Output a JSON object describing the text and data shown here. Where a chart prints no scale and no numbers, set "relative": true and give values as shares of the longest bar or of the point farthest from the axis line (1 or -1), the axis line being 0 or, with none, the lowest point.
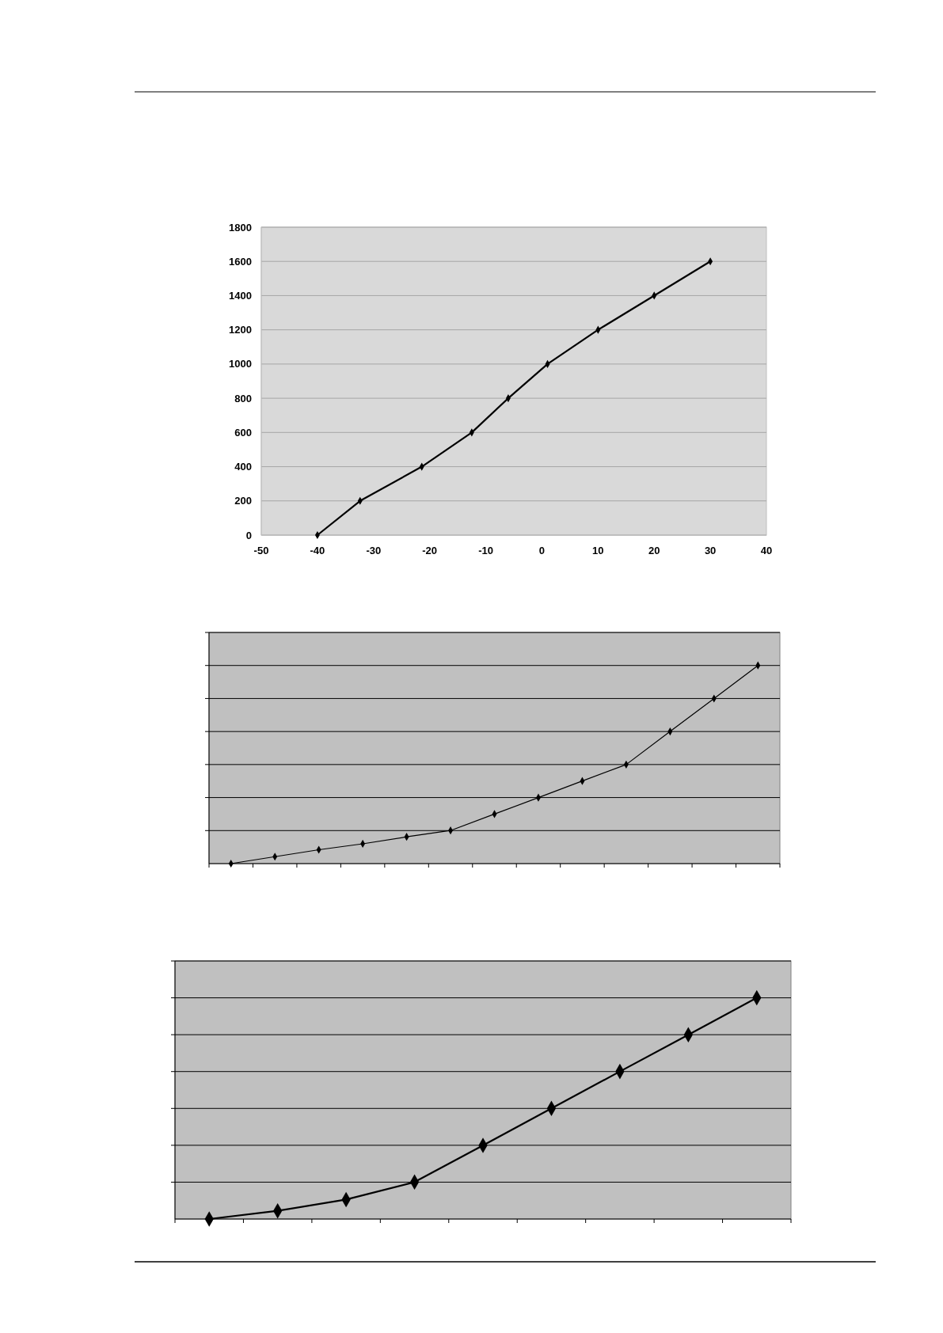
{
  "chart_data": [
    {
      "type": "line",
      "x": [
        -40,
        -32.4,
        -21.4,
        -12.5,
        -6,
        1,
        10,
        20,
        30
      ],
      "values": [
        0,
        200,
        400,
        600,
        800,
        1000,
        1200,
        1400,
        1600
      ],
      "color": "#000000",
      "xlim": [
        -50,
        40
      ],
      "xticks": [
        -50,
        -40,
        -30,
        -20,
        -10,
        0,
        10,
        20,
        30,
        40
      ],
      "ylim": [
        0,
        1800
      ],
      "yticks": [
        0,
        200,
        400,
        600,
        800,
        1000,
        1200,
        1400,
        1600,
        1800
      ],
      "grid": "y",
      "marker": "diamond"
    },
    {
      "type": "line",
      "categories": [
        null,
        null,
        null,
        null,
        null,
        null,
        null,
        null,
        null,
        null,
        null,
        null,
        null
      ],
      "values": [
        0,
        0.035,
        0.07,
        0.1,
        0.135,
        0.167,
        0.25,
        0.333,
        0.417,
        0.5,
        0.667,
        0.833,
        1
      ],
      "color": "#000000",
      "relative": true,
      "grid": "y",
      "marker": "diamond"
    },
    {
      "type": "line",
      "categories": [
        null,
        null,
        null,
        null,
        null,
        null,
        null,
        null,
        null
      ],
      "values": [
        0,
        0.037,
        0.088,
        0.167,
        0.333,
        0.5,
        0.667,
        0.833,
        1
      ],
      "color": "#000000",
      "relative": true,
      "grid": "y",
      "marker": "diamond"
    }
  ]
}
